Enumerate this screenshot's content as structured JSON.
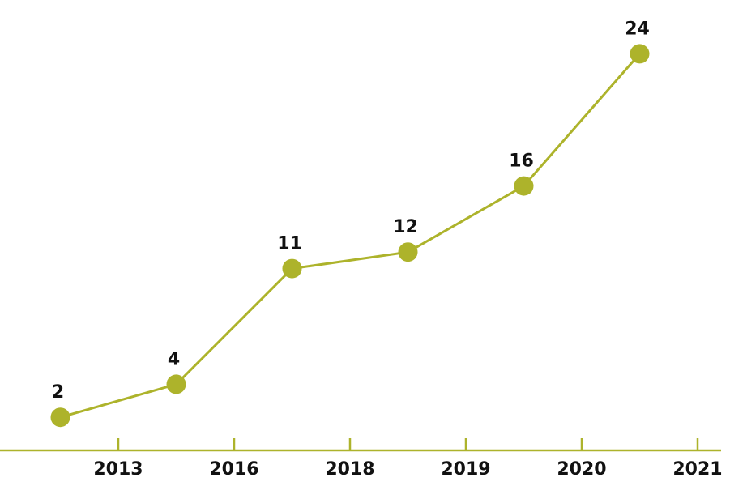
{
  "chart_data": {
    "type": "line",
    "categories": [
      "2013",
      "2016",
      "2018",
      "2019",
      "2020",
      "2021"
    ],
    "values": [
      2,
      4,
      11,
      12,
      16,
      24
    ],
    "color": "#adb32b",
    "ylim": [
      0,
      25
    ]
  }
}
